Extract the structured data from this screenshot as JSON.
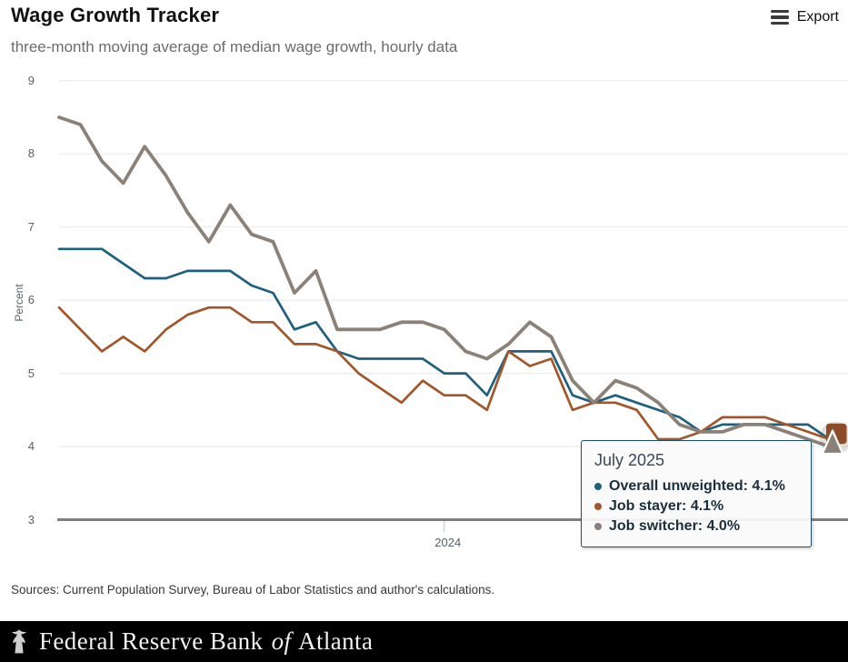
{
  "header": {
    "title": "Wage Growth Tracker",
    "subtitle": "three-month moving average of median wage growth, hourly data",
    "export_label": "Export"
  },
  "chart_data": {
    "type": "line",
    "title": "Wage Growth Tracker",
    "ylabel": "Percent",
    "ylim": [
      3,
      9
    ],
    "yticks": [
      9,
      8,
      7,
      6,
      5,
      4,
      3
    ],
    "grid": true,
    "x_count": 37,
    "xticks": [
      {
        "label": "2024",
        "index": 18
      }
    ],
    "last_point_label": "July 2025",
    "series": [
      {
        "name": "Overall unweighted",
        "color": "#20607f",
        "width": 2.7,
        "marker": "square",
        "values": [
          6.7,
          6.7,
          6.7,
          6.5,
          6.3,
          6.3,
          6.4,
          6.4,
          6.4,
          6.2,
          6.1,
          5.6,
          5.7,
          5.3,
          5.2,
          5.2,
          5.2,
          5.2,
          5.0,
          5.0,
          4.7,
          5.3,
          5.3,
          5.3,
          4.7,
          4.6,
          4.7,
          4.6,
          4.5,
          4.4,
          4.2,
          4.3,
          4.3,
          4.3,
          4.3,
          4.3,
          4.1
        ]
      },
      {
        "name": "Job stayer",
        "color": "#a3562a",
        "width": 2.7,
        "marker": "square",
        "values": [
          5.9,
          5.6,
          5.3,
          5.5,
          5.3,
          5.6,
          5.8,
          5.9,
          5.9,
          5.7,
          5.7,
          5.4,
          5.4,
          5.3,
          5.0,
          4.8,
          4.6,
          4.9,
          4.7,
          4.7,
          4.5,
          5.3,
          5.1,
          5.2,
          4.5,
          4.6,
          4.6,
          4.5,
          4.1,
          4.1,
          4.2,
          4.4,
          4.4,
          4.4,
          4.3,
          4.2,
          4.1
        ]
      },
      {
        "name": "Job switcher",
        "color": "#8b8178",
        "width": 3.8,
        "marker": "triangle",
        "values": [
          8.5,
          8.4,
          7.9,
          7.6,
          8.1,
          7.7,
          7.2,
          6.8,
          7.3,
          6.9,
          6.8,
          6.1,
          6.4,
          5.6,
          5.6,
          5.6,
          5.7,
          5.7,
          5.6,
          5.3,
          5.2,
          5.4,
          5.7,
          5.5,
          4.9,
          4.6,
          4.9,
          4.8,
          4.6,
          4.3,
          4.2,
          4.2,
          4.3,
          4.3,
          4.2,
          4.1,
          4.0
        ]
      }
    ],
    "colors": {
      "grid": "#e8e8e8",
      "axis": "#7f7f7f",
      "tick_text": "#56626c",
      "halo": "#b3aba2"
    }
  },
  "tooltip": {
    "heading": "July 2025",
    "items": [
      {
        "label": "Overall unweighted",
        "value": "4.1%",
        "color": "#20607f"
      },
      {
        "label": "Job stayer",
        "value": "4.1%",
        "color": "#a3562a"
      },
      {
        "label": "Job switcher",
        "value": "4.0%",
        "color": "#8b8178"
      }
    ]
  },
  "sources": "Sources: Current Population Survey, Bureau of Labor Statistics and author's calculations.",
  "footer": {
    "brand_prefix": "Federal Reserve Bank",
    "brand_of": "of",
    "brand_suffix": "Atlanta"
  }
}
